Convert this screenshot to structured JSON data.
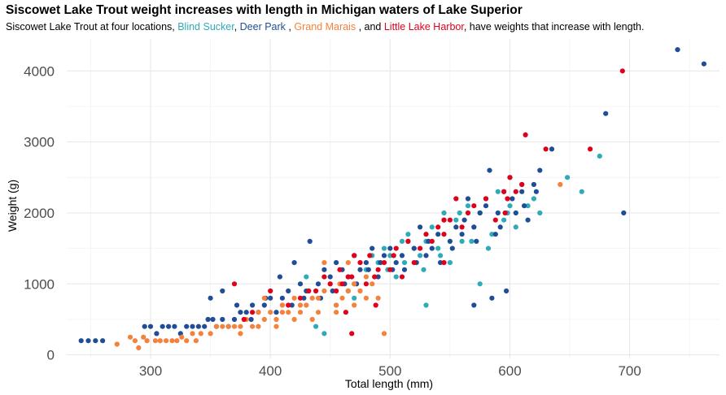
{
  "title": "Siscowet Lake Trout weight increases with length in Michigan waters of Lake Superior",
  "subtitle": {
    "prefix": "Siscowet Lake Trout at four locations, ",
    "sep1": ", ",
    "sep2": " , ",
    "sep3": " , and ",
    "suffix": ", have weights that increase with length."
  },
  "chart_data": {
    "type": "scatter",
    "xlabel": "Total length (mm)",
    "ylabel": "Weight (g)",
    "xlim": [
      230,
      775
    ],
    "ylim": [
      -50,
      4450
    ],
    "xticks": [
      300,
      400,
      500,
      600,
      700
    ],
    "yticks": [
      0,
      1000,
      2000,
      3000,
      4000
    ],
    "grid": true,
    "legend": "inline-subtitle",
    "series": [
      {
        "name": "Blind Sucker",
        "color": "#2eaab8",
        "points": [
          [
            430,
            1100
          ],
          [
            445,
            300
          ],
          [
            465,
            900
          ],
          [
            470,
            1000
          ],
          [
            480,
            1200
          ],
          [
            490,
            1300
          ],
          [
            495,
            1500
          ],
          [
            500,
            1400
          ],
          [
            505,
            1100
          ],
          [
            510,
            1600
          ],
          [
            515,
            1700
          ],
          [
            520,
            1500
          ],
          [
            525,
            1400
          ],
          [
            530,
            700
          ],
          [
            530,
            1600
          ],
          [
            535,
            1800
          ],
          [
            540,
            1500
          ],
          [
            545,
            2000
          ],
          [
            550,
            1300
          ],
          [
            555,
            1900
          ],
          [
            560,
            1600
          ],
          [
            565,
            2100
          ],
          [
            570,
            1800
          ],
          [
            575,
            1000
          ],
          [
            575,
            2000
          ],
          [
            580,
            2200
          ],
          [
            585,
            1700
          ],
          [
            590,
            2300
          ],
          [
            595,
            1900
          ],
          [
            600,
            2100
          ],
          [
            605,
            1800
          ],
          [
            610,
            2400
          ],
          [
            615,
            2100
          ],
          [
            620,
            2200
          ],
          [
            625,
            2000
          ],
          [
            648,
            2500
          ],
          [
            660,
            2300
          ],
          [
            675,
            2800
          ],
          [
            438,
            400
          ],
          [
            455,
            700
          ],
          [
            470,
            800
          ],
          [
            485,
            1400
          ],
          [
            498,
            1200
          ],
          [
            512,
            1300
          ],
          [
            528,
            1200
          ],
          [
            542,
            1400
          ],
          [
            558,
            2000
          ],
          [
            568,
            1600
          ],
          [
            582,
            1500
          ],
          [
            598,
            2000
          ]
        ]
      },
      {
        "name": "Deer Park",
        "color": "#1f4e96",
        "points": [
          [
            242,
            200
          ],
          [
            248,
            200
          ],
          [
            254,
            200
          ],
          [
            260,
            200
          ],
          [
            295,
            400
          ],
          [
            300,
            400
          ],
          [
            305,
            300
          ],
          [
            310,
            400
          ],
          [
            315,
            400
          ],
          [
            320,
            400
          ],
          [
            325,
            300
          ],
          [
            330,
            400
          ],
          [
            335,
            400
          ],
          [
            340,
            400
          ],
          [
            345,
            400
          ],
          [
            348,
            500
          ],
          [
            352,
            500
          ],
          [
            355,
            400
          ],
          [
            360,
            500
          ],
          [
            365,
            400
          ],
          [
            370,
            500
          ],
          [
            375,
            600
          ],
          [
            380,
            600
          ],
          [
            385,
            700
          ],
          [
            390,
            600
          ],
          [
            395,
            700
          ],
          [
            400,
            800
          ],
          [
            405,
            600
          ],
          [
            410,
            800
          ],
          [
            415,
            900
          ],
          [
            420,
            1300
          ],
          [
            425,
            1000
          ],
          [
            430,
            900
          ],
          [
            433,
            1600
          ],
          [
            440,
            1000
          ],
          [
            445,
            1200
          ],
          [
            450,
            1100
          ],
          [
            455,
            1300
          ],
          [
            460,
            1200
          ],
          [
            465,
            1100
          ],
          [
            470,
            1400
          ],
          [
            475,
            1200
          ],
          [
            480,
            1300
          ],
          [
            485,
            1500
          ],
          [
            490,
            1100
          ],
          [
            495,
            1400
          ],
          [
            500,
            1500
          ],
          [
            505,
            1300
          ],
          [
            510,
            1400
          ],
          [
            515,
            1600
          ],
          [
            520,
            1500
          ],
          [
            525,
            1800
          ],
          [
            530,
            1400
          ],
          [
            535,
            1500
          ],
          [
            540,
            1700
          ],
          [
            545,
            1900
          ],
          [
            550,
            1600
          ],
          [
            555,
            1800
          ],
          [
            560,
            1700
          ],
          [
            565,
            2200
          ],
          [
            570,
            1800
          ],
          [
            575,
            2000
          ],
          [
            580,
            2100
          ],
          [
            583,
            2600
          ],
          [
            588,
            1700
          ],
          [
            590,
            2000
          ],
          [
            595,
            2300
          ],
          [
            600,
            2500
          ],
          [
            605,
            2000
          ],
          [
            610,
            2300
          ],
          [
            615,
            1900
          ],
          [
            620,
            2400
          ],
          [
            625,
            2600
          ],
          [
            635,
            2900
          ],
          [
            570,
            700
          ],
          [
            585,
            800
          ],
          [
            597,
            900
          ],
          [
            680,
            3400
          ],
          [
            695,
            2000
          ],
          [
            740,
            4300
          ],
          [
            762,
            4100
          ],
          [
            350,
            800
          ],
          [
            360,
            900
          ],
          [
            372,
            700
          ],
          [
            384,
            500
          ],
          [
            396,
            800
          ],
          [
            408,
            1100
          ],
          [
            418,
            700
          ],
          [
            428,
            800
          ],
          [
            442,
            800
          ],
          [
            452,
            900
          ],
          [
            462,
            1000
          ],
          [
            472,
            1000
          ],
          [
            482,
            1200
          ],
          [
            492,
            1300
          ],
          [
            502,
            1200
          ],
          [
            512,
            1200
          ],
          [
            522,
            1300
          ],
          [
            532,
            1600
          ],
          [
            542,
            1300
          ],
          [
            552,
            1500
          ],
          [
            562,
            1900
          ],
          [
            572,
            1600
          ],
          [
            592,
            1800
          ],
          [
            602,
            2200
          ],
          [
            612,
            2100
          ],
          [
            622,
            2300
          ]
        ]
      },
      {
        "name": "Grand Marais",
        "color": "#f5823c",
        "points": [
          [
            272,
            150
          ],
          [
            283,
            250
          ],
          [
            287,
            200
          ],
          [
            290,
            100
          ],
          [
            294,
            250
          ],
          [
            297,
            200
          ],
          [
            304,
            200
          ],
          [
            308,
            200
          ],
          [
            313,
            200
          ],
          [
            318,
            200
          ],
          [
            322,
            200
          ],
          [
            326,
            250
          ],
          [
            330,
            200
          ],
          [
            335,
            300
          ],
          [
            338,
            200
          ],
          [
            342,
            300
          ],
          [
            350,
            300
          ],
          [
            355,
            400
          ],
          [
            360,
            400
          ],
          [
            365,
            400
          ],
          [
            370,
            400
          ],
          [
            375,
            400
          ],
          [
            380,
            500
          ],
          [
            385,
            400
          ],
          [
            390,
            600
          ],
          [
            395,
            500
          ],
          [
            400,
            600
          ],
          [
            405,
            500
          ],
          [
            410,
            700
          ],
          [
            415,
            600
          ],
          [
            420,
            800
          ],
          [
            425,
            600
          ],
          [
            430,
            700
          ],
          [
            435,
            800
          ],
          [
            440,
            600
          ],
          [
            445,
            900
          ],
          [
            450,
            1000
          ],
          [
            455,
            700
          ],
          [
            460,
            800
          ],
          [
            465,
            900
          ],
          [
            470,
            1000
          ],
          [
            475,
            900
          ],
          [
            480,
            800
          ],
          [
            485,
            1000
          ],
          [
            490,
            800
          ],
          [
            445,
            1300
          ],
          [
            465,
            1300
          ],
          [
            495,
            300
          ],
          [
            480,
            1100
          ],
          [
            470,
            700
          ],
          [
            455,
            600
          ],
          [
            435,
            500
          ],
          [
            420,
            500
          ],
          [
            405,
            400
          ],
          [
            390,
            400
          ],
          [
            375,
            300
          ],
          [
            395,
            800
          ],
          [
            410,
            600
          ],
          [
            425,
            700
          ],
          [
            440,
            800
          ],
          [
            458,
            1000
          ],
          [
            642,
            2400
          ]
        ]
      },
      {
        "name": "Little Lake Harbor",
        "color": "#e0001b",
        "points": [
          [
            370,
            1000
          ],
          [
            378,
            500
          ],
          [
            385,
            600
          ],
          [
            400,
            900
          ],
          [
            415,
            700
          ],
          [
            425,
            800
          ],
          [
            432,
            900
          ],
          [
            438,
            900
          ],
          [
            445,
            1100
          ],
          [
            450,
            1000
          ],
          [
            455,
            900
          ],
          [
            458,
            1200
          ],
          [
            460,
            1000
          ],
          [
            465,
            1100
          ],
          [
            468,
            1100
          ],
          [
            470,
            1400
          ],
          [
            475,
            1300
          ],
          [
            480,
            1000
          ],
          [
            483,
            1400
          ],
          [
            487,
            1100
          ],
          [
            490,
            1200
          ],
          [
            495,
            1300
          ],
          [
            500,
            1200
          ],
          [
            505,
            1500
          ],
          [
            510,
            1100
          ],
          [
            515,
            1600
          ],
          [
            520,
            1300
          ],
          [
            525,
            1500
          ],
          [
            530,
            1700
          ],
          [
            535,
            1600
          ],
          [
            540,
            1800
          ],
          [
            545,
            1700
          ],
          [
            550,
            1900
          ],
          [
            555,
            2200
          ],
          [
            560,
            1800
          ],
          [
            565,
            2000
          ],
          [
            570,
            2100
          ],
          [
            580,
            2200
          ],
          [
            588,
            1900
          ],
          [
            595,
            2300
          ],
          [
            600,
            2500
          ],
          [
            605,
            2300
          ],
          [
            610,
            2400
          ],
          [
            613,
            3100
          ],
          [
            630,
            2900
          ],
          [
            667,
            2900
          ],
          [
            694,
            4000
          ],
          [
            468,
            300
          ],
          [
            488,
            700
          ],
          [
            463,
            600
          ],
          [
            545,
            1300
          ],
          [
            545,
            1900
          ],
          [
            598,
            2200
          ],
          [
            596,
            2000
          ],
          [
            503,
            1400
          ]
        ]
      }
    ]
  }
}
